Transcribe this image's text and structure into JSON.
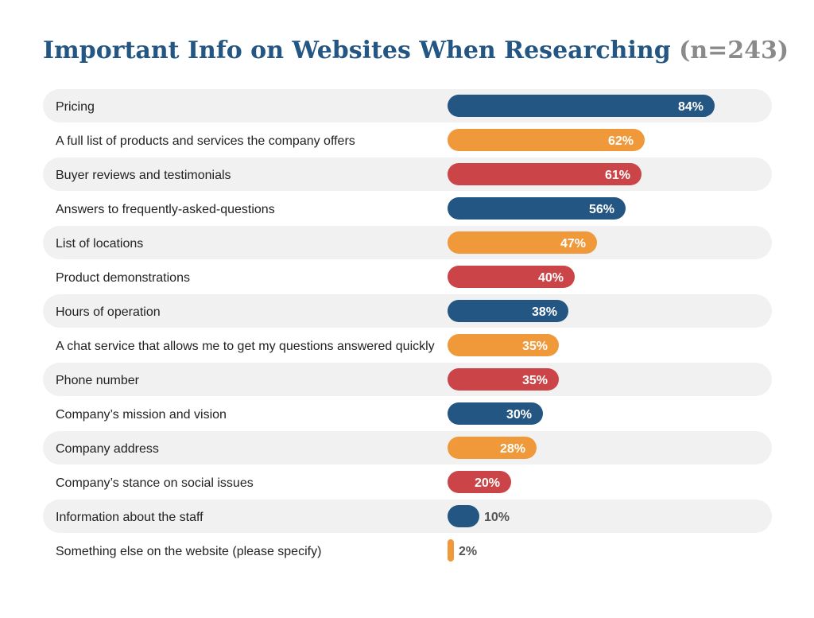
{
  "chart_data": {
    "type": "bar",
    "orientation": "horizontal",
    "title": "Important Info on Websites When Researching",
    "title_note": "(n=243)",
    "value_suffix": "%",
    "categories": [
      "Pricing",
      "A full list of products and services the company offers",
      "Buyer reviews and testimonials",
      "Answers to frequently-asked-questions",
      "List of locations",
      "Product demonstrations",
      "Hours of operation",
      "A chat service that allows me to get my questions answered quickly",
      "Phone number",
      "Company’s mission and vision",
      "Company address",
      "Company’s stance on social issues",
      "Information about the staff",
      "Something else on the website (please specify)"
    ],
    "values": [
      84,
      62,
      61,
      56,
      47,
      40,
      38,
      35,
      35,
      30,
      28,
      20,
      10,
      2
    ],
    "bar_colors": [
      "#235682",
      "#f0993a",
      "#cb4548",
      "#235682",
      "#f0993a",
      "#cb4548",
      "#235682",
      "#f0993a",
      "#cb4548",
      "#235682",
      "#f0993a",
      "#cb4548",
      "#235682",
      "#f0993a"
    ],
    "xlim": [
      0,
      100
    ],
    "grid": false,
    "legend": "none"
  },
  "colors": {
    "title": "#235682",
    "title_note": "#8a8a8a",
    "row_stripe": "#f1f1f1",
    "label_text": "#222222",
    "value_inside": "#ffffff",
    "value_outside": "#555555"
  }
}
